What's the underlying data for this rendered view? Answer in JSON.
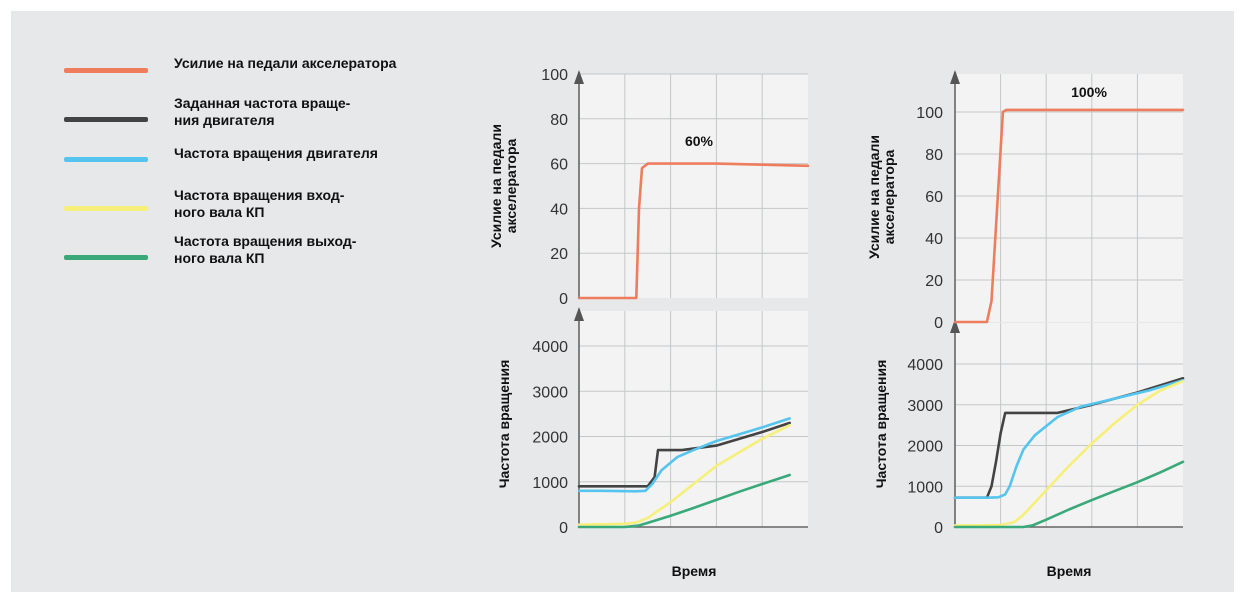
{
  "legend": [
    {
      "label": "Усилие на педали акселератора",
      "color": "#ee7d5d"
    },
    {
      "label": "Заданная частота враще-\nния двигателя",
      "color": "#434343"
    },
    {
      "label": "Частота вращения двигателя",
      "color": "#55c4ee"
    },
    {
      "label": "Частота вращения вход-\nного вала КП",
      "color": "#f6ef79"
    },
    {
      "label": "Частота вращения выход-\nного вала КП",
      "color": "#3aa979"
    }
  ],
  "chart_data": [
    {
      "type": "line",
      "annotation": "60%",
      "xlabel": "Время",
      "x_range": [
        0,
        10
      ],
      "top": {
        "ylabel": "Усилие на педали акселератора",
        "ylabel_lines": [
          "Усилие на педали",
          "акселератора"
        ],
        "yticks": [
          "0",
          "20",
          "40",
          "60",
          "80",
          "100"
        ],
        "ylim": [
          0,
          100
        ],
        "series": [
          {
            "color": "#ee7d5d",
            "x": [
              0,
              2.5,
              2.62,
              2.75,
              3.0,
              5.0,
              6.0,
              8.0,
              10.0
            ],
            "y": [
              0,
              0,
              40,
              58,
              60,
              60,
              60,
              59.5,
              59
            ]
          }
        ]
      },
      "bottom": {
        "ylabel": "Частота вращения",
        "yticks": [
          "0",
          "1000",
          "2000",
          "3000",
          "4000"
        ],
        "ylim": [
          0,
          4000
        ],
        "series": [
          {
            "color": "#434343",
            "x": [
              0,
              3.0,
              3.3,
              3.45,
              4.5,
              6.0,
              8.0,
              9.2
            ],
            "y": [
              900,
              900,
              1100,
              1700,
              1700,
              1800,
              2100,
              2300
            ]
          },
          {
            "color": "#55c4ee",
            "x": [
              0,
              1.0,
              2.5,
              2.9,
              3.2,
              3.6,
              4.3,
              5.0,
              6.0,
              7.0,
              8.0,
              9.2
            ],
            "y": [
              800,
              800,
              790,
              800,
              950,
              1250,
              1550,
              1700,
              1900,
              2050,
              2200,
              2400
            ]
          },
          {
            "color": "#f6ef79",
            "x": [
              0,
              1.0,
              2.0,
              2.5,
              3.0,
              4.0,
              5.0,
              6.0,
              7.0,
              8.0,
              9.2
            ],
            "y": [
              50,
              60,
              70,
              100,
              200,
              550,
              950,
              1350,
              1650,
              1950,
              2250
            ]
          },
          {
            "color": "#3aa979",
            "x": [
              0,
              1.0,
              2.0,
              2.6,
              3.0,
              4.0,
              5.0,
              6.0,
              7.0,
              8.0,
              9.2
            ],
            "y": [
              0,
              0,
              0,
              30,
              90,
              250,
              420,
              600,
              780,
              950,
              1150
            ]
          }
        ]
      }
    },
    {
      "type": "line",
      "annotation": "100%",
      "xlabel": "Время",
      "x_range": [
        0,
        10
      ],
      "top": {
        "ylabel": "Усилие на педали акселератора",
        "ylabel_lines": [
          "Усилие на педали",
          "акселератора"
        ],
        "yticks": [
          "0",
          "20",
          "40",
          "60",
          "80",
          "100"
        ],
        "ylim": [
          0,
          100
        ],
        "series": [
          {
            "color": "#ee7d5d",
            "x": [
              0,
              1.4,
              1.6,
              2.1,
              2.25,
              10.0
            ],
            "y": [
              0,
              0,
              10,
              100,
              101,
              101
            ]
          }
        ]
      },
      "bottom": {
        "ylabel": "Частота вращения",
        "yticks": [
          "0",
          "1000",
          "2000",
          "3000",
          "4000"
        ],
        "ylim": [
          0,
          4000
        ],
        "series": [
          {
            "color": "#434343",
            "x": [
              0,
              1.4,
              1.6,
              1.8,
              2.0,
              2.2,
              4.5,
              6.0,
              8.0,
              10.0
            ],
            "y": [
              720,
              720,
              1000,
              1600,
              2300,
              2800,
              2800,
              3000,
              3300,
              3650
            ]
          },
          {
            "color": "#55c4ee",
            "x": [
              0,
              1.4,
              1.9,
              2.2,
              2.4,
              2.7,
              3.0,
              3.5,
              4.5,
              5.5,
              7.0,
              8.5,
              10.0
            ],
            "y": [
              720,
              720,
              730,
              800,
              1000,
              1500,
              1900,
              2250,
              2700,
              2950,
              3150,
              3350,
              3600
            ]
          },
          {
            "color": "#f6ef79",
            "x": [
              0,
              1.0,
              2.0,
              2.6,
              3.0,
              4.0,
              5.0,
              6.0,
              7.0,
              8.0,
              9.0,
              10.0
            ],
            "y": [
              40,
              40,
              50,
              120,
              300,
              900,
              1500,
              2050,
              2550,
              3000,
              3350,
              3580
            ]
          },
          {
            "color": "#3aa979",
            "x": [
              0,
              2.0,
              3.0,
              3.4,
              4.0,
              5.0,
              6.0,
              7.0,
              8.0,
              9.0,
              10.0
            ],
            "y": [
              0,
              0,
              0,
              40,
              180,
              430,
              660,
              880,
              1100,
              1340,
              1600
            ]
          }
        ]
      }
    }
  ]
}
